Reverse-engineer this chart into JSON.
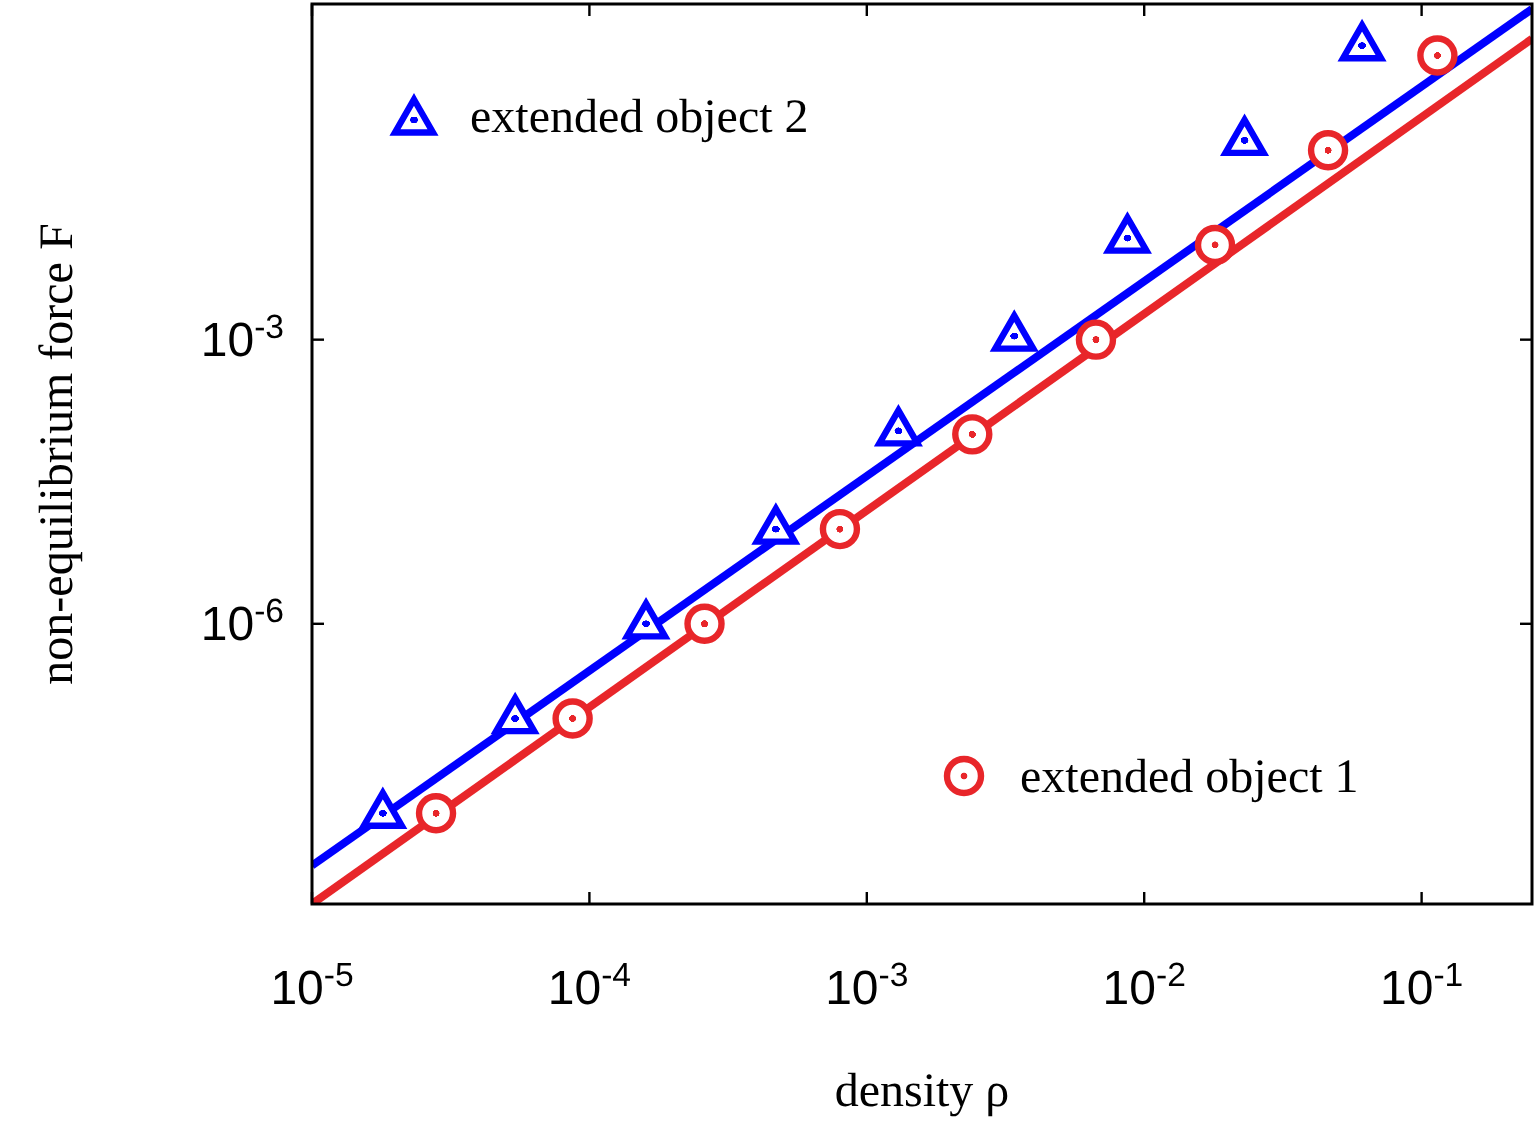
{
  "chart_data": {
    "type": "scatter",
    "xlabel": "density ρ",
    "ylabel": "non-equilibrium force F",
    "log": "xy",
    "xlim": [
      1e-05,
      0.25
    ],
    "ylim": [
      1.1e-09,
      3.5
    ],
    "xticks": [
      {
        "value": 1e-05,
        "label": "10$^{-5}$"
      },
      {
        "value": 0.0001,
        "label": "10$^{-4}$"
      },
      {
        "value": 0.001,
        "label": "10$^{-3}$"
      },
      {
        "value": 0.01,
        "label": "10$^{-2}$"
      },
      {
        "value": 0.1,
        "label": "10$^{-1}$"
      }
    ],
    "yticks": [
      {
        "value": 1e-06,
        "label": "10$^{-6}$"
      },
      {
        "value": 0.001,
        "label": "10$^{-3}$"
      }
    ],
    "legend": "top left",
    "series": [
      {
        "name": "extended object 2",
        "marker": "triangle",
        "color": "#0000ff",
        "x": [
          1.8e-05,
          5.4e-05,
          0.00016,
          0.00047,
          0.0013,
          0.0034,
          0.0087,
          0.023,
          0.061
        ],
        "values": [
          1.1e-08,
          1.1e-07,
          1.1e-06,
          1.1e-05,
          0.00012,
          0.0012,
          0.013,
          0.14,
          1.4
        ]
      },
      {
        "name": "extended object 1",
        "marker": "circle",
        "color": "#e8262a",
        "x": [
          2.8e-05,
          8.7e-05,
          0.00026,
          0.0008,
          0.0024,
          0.0067,
          0.018,
          0.046,
          0.114
        ],
        "values": [
          1e-08,
          1e-07,
          1e-06,
          1e-05,
          0.0001,
          0.001,
          0.01,
          0.1,
          1
        ]
      },
      {
        "type": "line",
        "color": "#0000ff",
        "x": [
          1e-05,
          0.25
        ],
        "values": [
          2.8e-09,
          3.1
        ]
      },
      {
        "type": "line",
        "color": "#e8262a",
        "x": [
          1e-05,
          0.25
        ],
        "values": [
          1.1e-09,
          1.5
        ]
      }
    ]
  }
}
